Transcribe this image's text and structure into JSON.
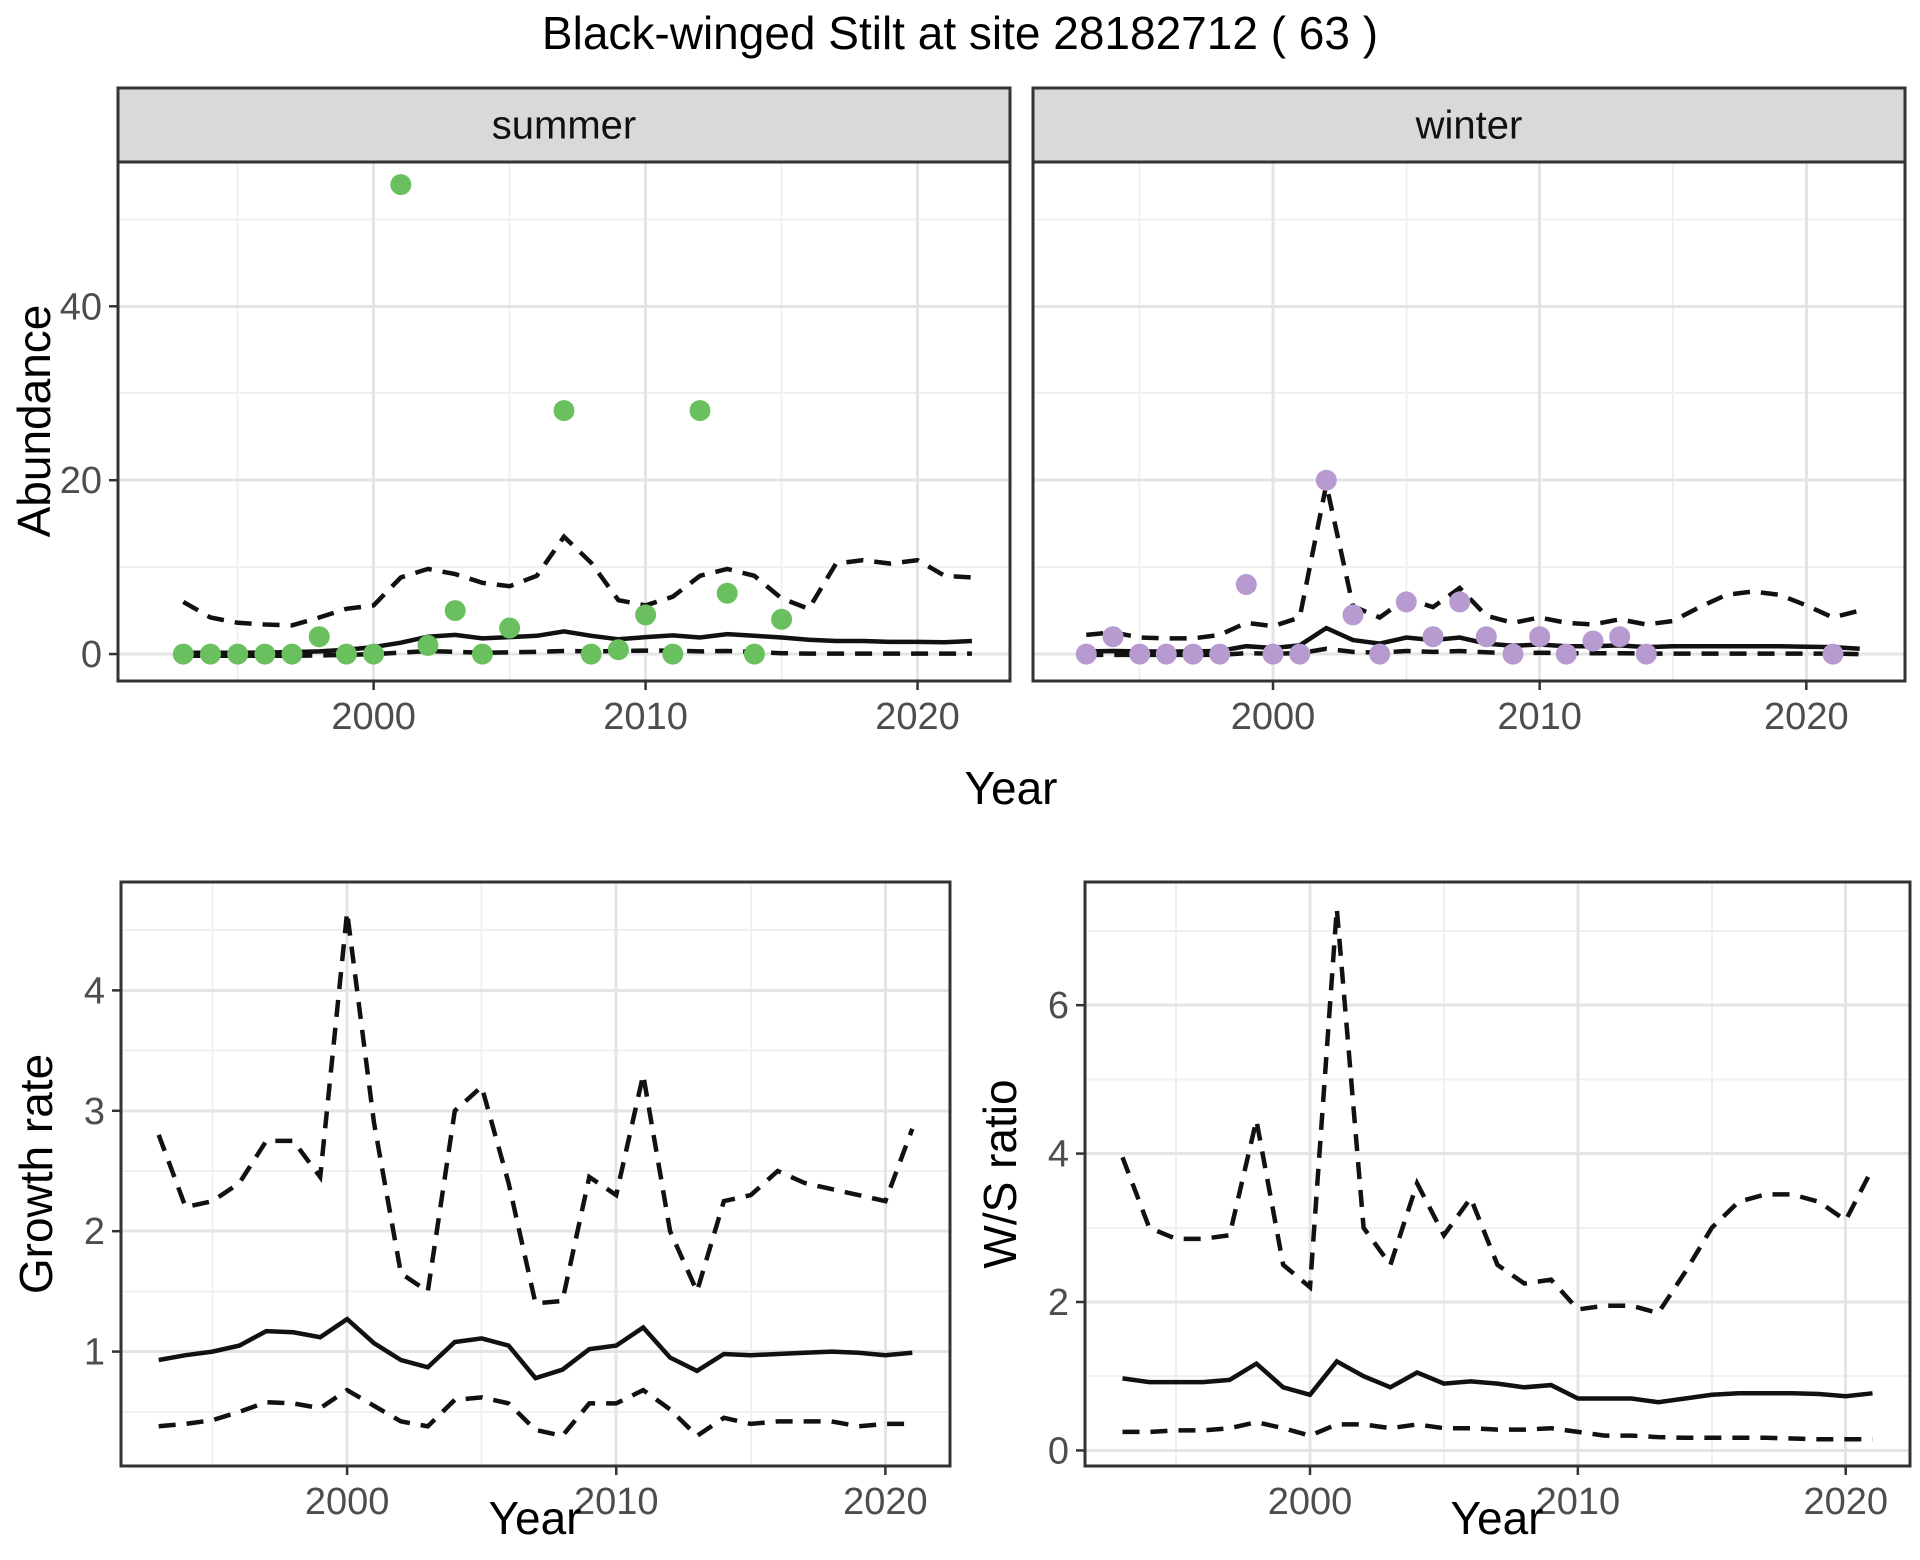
{
  "title": "Black-winged Stilt at site 28182712 ( 63 )",
  "theme": {
    "strip_fill": "#d9d9d9",
    "panel_border": "#333333",
    "grid_major": "#e4e4e4",
    "grid_minor": "#f0f0f0",
    "tick_label_color": "#4d4d4d",
    "line_color": "#111111",
    "summer_point_color": "#6abf5e",
    "winter_point_color": "#b79ad0"
  },
  "chart_data": [
    {
      "id": "abundance-summer",
      "type": "scatter",
      "facet_label": "summer",
      "ylabel": "Abundance",
      "xlabel": "Year",
      "xticks": [
        2000,
        2010,
        2020
      ],
      "yticks": [
        0,
        20,
        40
      ],
      "xlim": [
        1990.6,
        2023.4
      ],
      "ylim": [
        -3.1,
        56.6
      ],
      "points": {
        "color": "#6abf5e",
        "x": [
          1993,
          1994,
          1995,
          1996,
          1997,
          1998,
          1999,
          2000,
          2001,
          2002,
          2003,
          2004,
          2005,
          2007,
          2008,
          2009,
          2010,
          2011,
          2012,
          2013,
          2014,
          2015
        ],
        "y": [
          0,
          0,
          0,
          0,
          0,
          2,
          0,
          0,
          54,
          1,
          5,
          0,
          3,
          28,
          0,
          0.5,
          4.5,
          0,
          28,
          7,
          0,
          4
        ]
      },
      "lines": {
        "years": [
          1993,
          1994,
          1995,
          1996,
          1997,
          1998,
          1999,
          2000,
          2001,
          2002,
          2003,
          2004,
          2005,
          2006,
          2007,
          2008,
          2009,
          2010,
          2011,
          2012,
          2013,
          2014,
          2015,
          2016,
          2017,
          2018,
          2019,
          2020,
          2021,
          2022
        ],
        "mean": [
          0.15,
          0.15,
          0.15,
          0.18,
          0.22,
          0.3,
          0.5,
          0.8,
          1.3,
          2.0,
          2.2,
          1.8,
          1.95,
          2.1,
          2.6,
          2.1,
          1.7,
          1.95,
          2.15,
          1.9,
          2.3,
          2.1,
          1.9,
          1.65,
          1.5,
          1.5,
          1.4,
          1.4,
          1.35,
          1.5
        ],
        "upper": [
          6.0,
          4.2,
          3.6,
          3.4,
          3.3,
          4.2,
          5.2,
          5.6,
          8.8,
          9.8,
          9.2,
          8.2,
          7.8,
          9.0,
          13.5,
          10.5,
          6.2,
          5.6,
          6.6,
          9.0,
          9.8,
          9.0,
          6.4,
          5.2,
          10.4,
          10.8,
          10.4,
          10.8,
          9.0,
          8.8
        ],
        "lower": [
          -0.2,
          -0.2,
          -0.2,
          -0.2,
          -0.2,
          -0.15,
          -0.1,
          0.0,
          0.15,
          0.35,
          0.25,
          0.15,
          0.2,
          0.25,
          0.35,
          0.3,
          0.35,
          0.4,
          0.4,
          0.3,
          0.35,
          0.25,
          0.1,
          0.05,
          0.05,
          0.05,
          0.05,
          0.05,
          0.05,
          0.05
        ]
      }
    },
    {
      "id": "abundance-winter",
      "type": "scatter",
      "facet_label": "winter",
      "ylabel": "Abundance",
      "xlabel": "Year",
      "xticks": [
        2000,
        2010,
        2020
      ],
      "yticks": [
        0,
        20,
        40
      ],
      "xlim": [
        1991.0,
        2023.7
      ],
      "ylim": [
        -3.1,
        56.6
      ],
      "points": {
        "color": "#b79ad0",
        "x": [
          1993,
          1994,
          1995,
          1996,
          1997,
          1998,
          1999,
          2000,
          2001,
          2002,
          2003,
          2004,
          2005,
          2006,
          2007,
          2008,
          2009,
          2010,
          2011,
          2012,
          2013,
          2014,
          2021
        ],
        "y": [
          0,
          2,
          0,
          0,
          0,
          0,
          8,
          0,
          0,
          20,
          4.5,
          0,
          6,
          2,
          6,
          2,
          0,
          2,
          0,
          1.5,
          2,
          0,
          0
        ]
      },
      "lines": {
        "years": [
          1993,
          1994,
          1995,
          1996,
          1997,
          1998,
          1999,
          2000,
          2001,
          2002,
          2003,
          2004,
          2005,
          2006,
          2007,
          2008,
          2009,
          2010,
          2011,
          2012,
          2013,
          2014,
          2015,
          2016,
          2017,
          2018,
          2019,
          2020,
          2021,
          2022
        ],
        "mean": [
          0.3,
          0.35,
          0.3,
          0.28,
          0.3,
          0.35,
          0.9,
          0.7,
          1.0,
          3.0,
          1.6,
          1.2,
          1.9,
          1.6,
          1.9,
          1.2,
          0.95,
          1.1,
          0.9,
          0.9,
          1.0,
          0.8,
          0.9,
          0.9,
          0.9,
          0.9,
          0.9,
          0.85,
          0.8,
          0.6
        ],
        "upper": [
          2.2,
          2.5,
          1.9,
          1.8,
          1.8,
          2.2,
          3.6,
          3.2,
          4.2,
          19.5,
          5.5,
          4.2,
          6.4,
          5.4,
          7.6,
          4.4,
          3.6,
          4.2,
          3.6,
          3.4,
          4.0,
          3.4,
          3.8,
          5.4,
          6.8,
          7.2,
          6.8,
          5.6,
          4.2,
          5.0
        ],
        "lower": [
          -0.1,
          -0.1,
          -0.1,
          -0.1,
          -0.1,
          -0.1,
          0.1,
          0.05,
          0.1,
          0.6,
          0.25,
          0.15,
          0.35,
          0.25,
          0.35,
          0.2,
          0.1,
          0.15,
          0.1,
          0.1,
          0.1,
          0.05,
          0.05,
          0.05,
          0.05,
          0.05,
          0.05,
          0.05,
          0.05,
          0.0
        ]
      }
    },
    {
      "id": "growth-rate",
      "type": "line",
      "facet_label": "",
      "ylabel": "Growth rate",
      "xlabel": "Year",
      "xticks": [
        2000,
        2010,
        2020
      ],
      "yticks": [
        1,
        2,
        3,
        4
      ],
      "xlim": [
        1991.6,
        2022.4
      ],
      "ylim": [
        0.05,
        4.9
      ],
      "lines": {
        "years": [
          1993,
          1994,
          1995,
          1996,
          1997,
          1998,
          1999,
          2000,
          2001,
          2002,
          2003,
          2004,
          2005,
          2006,
          2007,
          2008,
          2009,
          2010,
          2011,
          2012,
          2013,
          2014,
          2015,
          2016,
          2017,
          2018,
          2019,
          2020,
          2021
        ],
        "mean": [
          0.93,
          0.97,
          1.0,
          1.05,
          1.17,
          1.16,
          1.12,
          1.27,
          1.07,
          0.93,
          0.87,
          1.08,
          1.11,
          1.05,
          0.78,
          0.85,
          1.02,
          1.05,
          1.2,
          0.95,
          0.84,
          0.98,
          0.97,
          0.98,
          0.99,
          1.0,
          0.99,
          0.97,
          0.99
        ],
        "upper": [
          2.8,
          2.2,
          2.25,
          2.4,
          2.75,
          2.75,
          2.45,
          4.65,
          2.9,
          1.65,
          1.5,
          3.0,
          3.2,
          2.4,
          1.4,
          1.42,
          2.45,
          2.3,
          3.3,
          2.0,
          1.5,
          2.25,
          2.3,
          2.5,
          2.4,
          2.35,
          2.3,
          2.25,
          2.85
        ],
        "lower": [
          0.38,
          0.4,
          0.43,
          0.5,
          0.58,
          0.57,
          0.53,
          0.68,
          0.55,
          0.42,
          0.38,
          0.6,
          0.62,
          0.57,
          0.35,
          0.3,
          0.57,
          0.57,
          0.68,
          0.52,
          0.3,
          0.45,
          0.4,
          0.42,
          0.42,
          0.42,
          0.38,
          0.4,
          0.4
        ]
      }
    },
    {
      "id": "ws-ratio",
      "type": "line",
      "facet_label": "",
      "ylabel": "W/S ratio",
      "xlabel": "Year",
      "xticks": [
        2000,
        2010,
        2020
      ],
      "yticks": [
        0,
        2,
        4,
        6
      ],
      "xlim": [
        1991.6,
        2022.4
      ],
      "ylim": [
        -0.21,
        7.66
      ],
      "lines": {
        "years": [
          1993,
          1994,
          1995,
          1996,
          1997,
          1998,
          1999,
          2000,
          2001,
          2002,
          2003,
          2004,
          2005,
          2006,
          2007,
          2008,
          2009,
          2010,
          2011,
          2012,
          2013,
          2014,
          2015,
          2016,
          2017,
          2018,
          2019,
          2020,
          2021
        ],
        "mean": [
          0.97,
          0.92,
          0.92,
          0.92,
          0.95,
          1.17,
          0.85,
          0.75,
          1.2,
          1.0,
          0.85,
          1.05,
          0.9,
          0.93,
          0.9,
          0.85,
          0.88,
          0.7,
          0.7,
          0.7,
          0.65,
          0.7,
          0.75,
          0.77,
          0.77,
          0.77,
          0.76,
          0.73,
          0.77
        ],
        "upper": [
          3.95,
          3.0,
          2.85,
          2.85,
          2.9,
          4.45,
          2.5,
          2.2,
          7.3,
          3.0,
          2.5,
          3.6,
          2.9,
          3.4,
          2.5,
          2.25,
          2.3,
          1.9,
          1.95,
          1.95,
          1.85,
          2.4,
          3.0,
          3.35,
          3.45,
          3.45,
          3.35,
          3.1,
          3.8
        ],
        "lower": [
          0.25,
          0.25,
          0.27,
          0.27,
          0.3,
          0.38,
          0.3,
          0.2,
          0.35,
          0.35,
          0.3,
          0.35,
          0.3,
          0.3,
          0.28,
          0.28,
          0.3,
          0.25,
          0.2,
          0.2,
          0.18,
          0.17,
          0.17,
          0.17,
          0.17,
          0.16,
          0.15,
          0.15,
          0.15
        ]
      }
    }
  ]
}
